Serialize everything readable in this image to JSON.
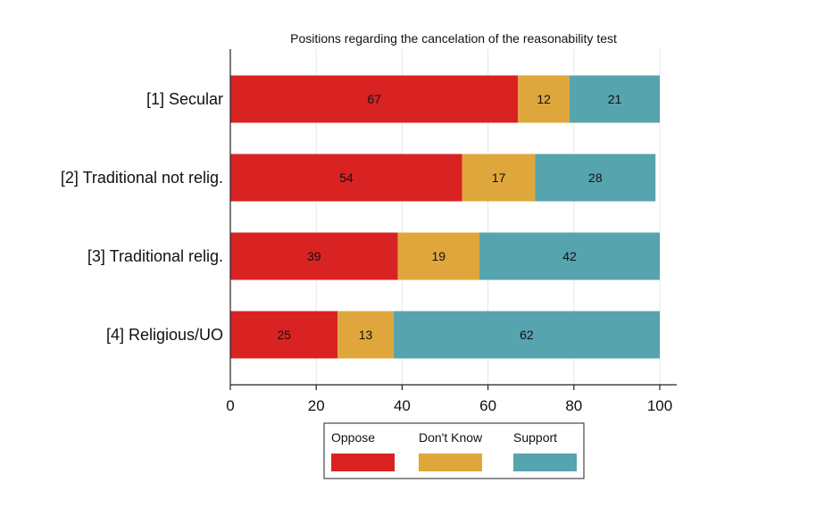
{
  "chart_data": {
    "type": "bar",
    "orientation": "horizontal",
    "stacked": true,
    "title": "Positions regarding the cancelation of the reasonability test",
    "categories": [
      "[1] Secular",
      "[2] Traditional not relig.",
      "[3] Traditional relig.",
      "[4] Religious/UO"
    ],
    "series": [
      {
        "name": "Oppose",
        "color": "#d92323",
        "values": [
          67,
          54,
          39,
          25
        ]
      },
      {
        "name": "Don't Know",
        "color": "#dfa73b",
        "values": [
          12,
          17,
          19,
          13
        ]
      },
      {
        "name": "Support",
        "color": "#56a4ae",
        "values": [
          21,
          28,
          42,
          62
        ]
      }
    ],
    "xlim": [
      0,
      100
    ],
    "xticks": [
      "0",
      "20",
      "40",
      "60",
      "80",
      "100"
    ],
    "grid": true,
    "legend_position": "bottom"
  }
}
